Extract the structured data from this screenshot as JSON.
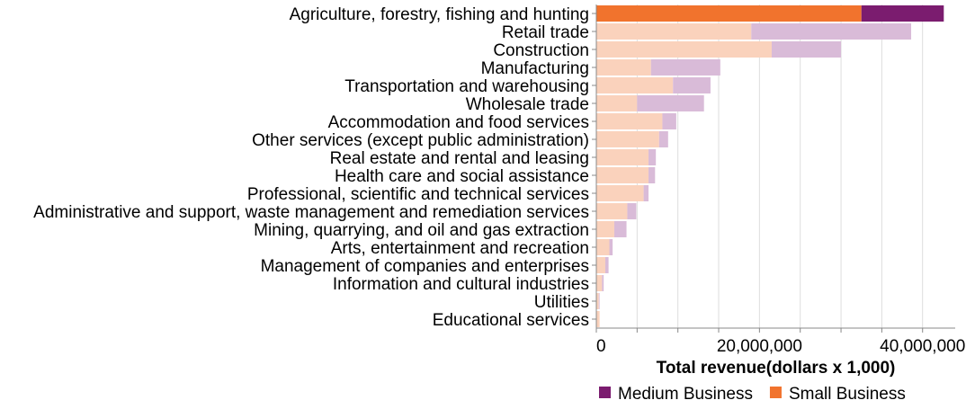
{
  "chart_data": {
    "type": "bar",
    "orientation": "horizontal",
    "stacked": true,
    "categories": [
      "Agriculture, forestry, fishing and hunting",
      "Retail trade",
      "Construction",
      "Manufacturing",
      "Transportation and warehousing",
      "Wholesale trade",
      "Accommodation and food services",
      "Other services (except public administration)",
      "Real estate and rental and leasing",
      "Health care and social assistance",
      "Professional, scientific and technical services",
      "Administrative and support, waste management and remediation services",
      "Mining, quarrying, and oil and gas extraction",
      "Arts, entertainment and recreation",
      "Management of companies and enterprises",
      "Information and cultural industries",
      "Utilities",
      "Educational services"
    ],
    "series": [
      {
        "name": "Small Business",
        "color": "#f1732d",
        "faded_color": "#fad2bc",
        "values": [
          32500000,
          19000000,
          21500000,
          6700000,
          9400000,
          5000000,
          8100000,
          7700000,
          6400000,
          6400000,
          5800000,
          3800000,
          2200000,
          1600000,
          1100000,
          700000,
          300000,
          400000
        ]
      },
      {
        "name": "Medium Business",
        "color": "#7b1c6f",
        "faded_color": "#d9bbd8",
        "values": [
          10100000,
          19600000,
          8500000,
          8500000,
          4600000,
          8200000,
          1700000,
          1100000,
          900000,
          800000,
          600000,
          1100000,
          1500000,
          400000,
          400000,
          200000,
          100000,
          0
        ]
      }
    ],
    "highlighted_category": "Agriculture, forestry, fishing and hunting",
    "xlabel": "Total revenue(dollars x 1,000)",
    "xlim": [
      0,
      44000000
    ],
    "x_ticks": [
      0,
      20000000,
      40000000
    ],
    "x_tick_labels": [
      "0",
      "20,000,000",
      "40,000,000"
    ],
    "grid": true,
    "legend_position": "bottom",
    "legend": [
      "Medium Business",
      "Small Business"
    ]
  }
}
